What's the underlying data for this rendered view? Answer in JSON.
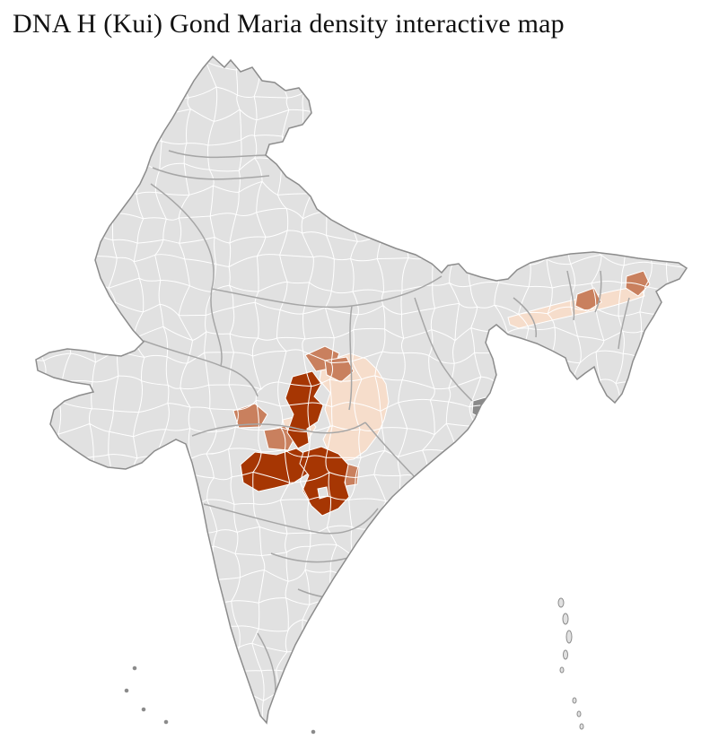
{
  "page": {
    "title": "DNA H (Kui) Gond Maria density interactive map"
  },
  "map": {
    "description": "Choropleth district map of India",
    "colors": {
      "background": "#ffffff",
      "base": "#e1e1e1",
      "district_border": "#ffffff",
      "state_border": "#a6a6a6",
      "outline": "#8c8c8c",
      "density_high": "#a63603",
      "density_mid": "#c9805e",
      "density_low": "#f6ddcb",
      "urban_gray": "#8a8a8a"
    }
  }
}
